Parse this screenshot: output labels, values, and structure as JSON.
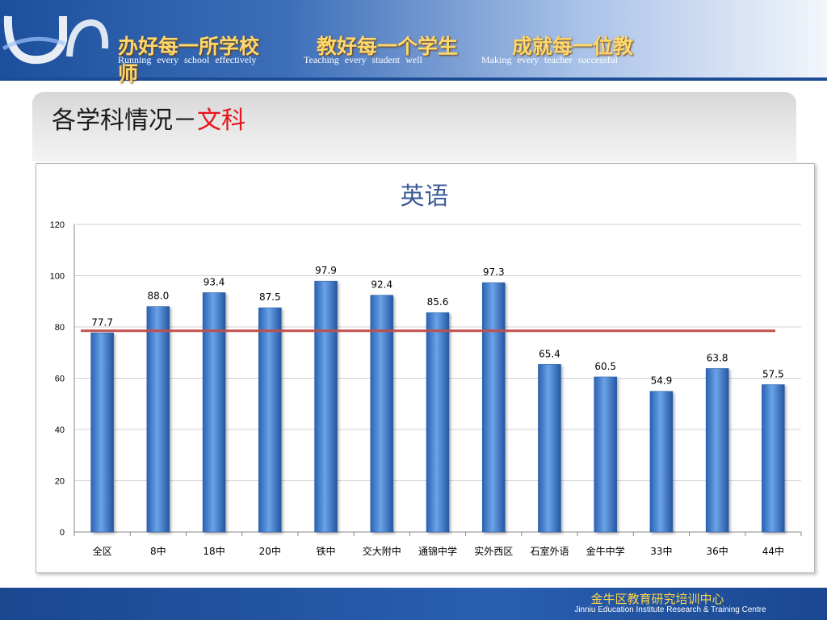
{
  "header": {
    "motto_cn": [
      "办好每一所学校",
      "教好每一个学生",
      "成就每一位教"
    ],
    "motto_cn_tail": "师",
    "motto_en": [
      "Running every school effectively",
      "Teaching every student well",
      "Making every teacher successful"
    ]
  },
  "slide": {
    "title_main": "各学科情况－",
    "title_accent": "文科"
  },
  "footer": {
    "org_cn": "金牛区教育研究培训中心",
    "org_en": "Jinniu Education Institute Research & Training Centre"
  },
  "colors": {
    "bar": "#4a86d3",
    "reference_line": "#c0504d",
    "accent_red": "#e8141b",
    "motto_gold": "#ffd86b"
  },
  "chart_data": {
    "type": "bar",
    "title": "英语",
    "categories": [
      "全区",
      "8中",
      "18中",
      "20中",
      "铁中",
      "交大附中",
      "通锦中学",
      "实外西区",
      "石室外语",
      "金牛中学",
      "33中",
      "36中",
      "44中"
    ],
    "values": [
      77.7,
      88.0,
      93.4,
      87.5,
      97.9,
      92.4,
      85.6,
      97.3,
      65.4,
      60.5,
      54.9,
      63.8,
      57.5
    ],
    "value_labels": [
      "77.7",
      "88.0",
      "93.4",
      "87.5",
      "97.9",
      "92.4",
      "85.6",
      "97.3",
      "65.4",
      "60.5",
      "54.9",
      "63.8",
      "57.5"
    ],
    "ylim": [
      0,
      120
    ],
    "yticks": [
      0,
      20,
      40,
      60,
      80,
      100,
      120
    ],
    "reference_line": 78.5,
    "grid": true,
    "legend": "none"
  }
}
